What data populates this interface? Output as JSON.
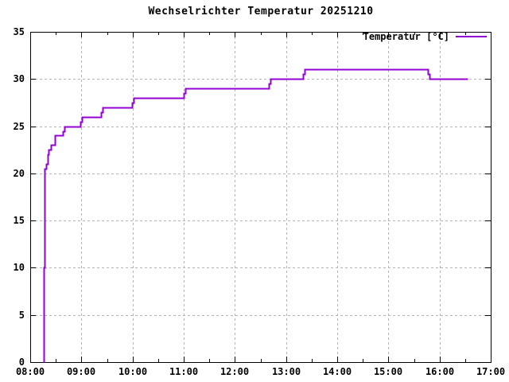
{
  "chart": {
    "title": "Wechselrichter Temperatur 20251210",
    "legend": {
      "label": "Temperatur [°C]"
    }
  },
  "colors": {
    "line": "#9400d3",
    "grid": "#b4b4b4",
    "border": "#000000",
    "background": "#ffffff",
    "text": "#000000"
  },
  "chart_data": {
    "type": "line",
    "style": "steps",
    "title": "Wechselrichter Temperatur 20251210",
    "xlabel": "",
    "ylabel": "",
    "x_unit": "hours (clock time HH:MM)",
    "y_unit": "°C",
    "xlim_hours": [
      8,
      17
    ],
    "ylim": [
      0,
      35
    ],
    "grid": true,
    "legend_position": "top-right-inside",
    "x_tick_hours": [
      8,
      9,
      10,
      11,
      12,
      13,
      14,
      15,
      16,
      17
    ],
    "x_tick_labels": [
      "08:00",
      "09:00",
      "10:00",
      "11:00",
      "12:00",
      "13:00",
      "14:00",
      "15:00",
      "16:00",
      "17:00"
    ],
    "x_minor_tick_hours": [
      8.5,
      9.5,
      10.5,
      11.5,
      12.5,
      13.5,
      14.5,
      15.5,
      16.5
    ],
    "y_ticks": [
      0,
      5,
      10,
      15,
      20,
      25,
      30,
      35
    ],
    "y_tick_labels": [
      "0",
      "5",
      "10",
      "15",
      "20",
      "25",
      "30",
      "35"
    ],
    "series": [
      {
        "name": "Temperatur [°C]",
        "color": "#9400d3",
        "points_format": "[time_in_hours, temperature_C] step vertices",
        "points": [
          [
            8.26,
            0
          ],
          [
            8.26,
            10
          ],
          [
            8.28,
            10
          ],
          [
            8.28,
            20.5
          ],
          [
            8.31,
            20.5
          ],
          [
            8.31,
            21
          ],
          [
            8.34,
            21
          ],
          [
            8.34,
            22
          ],
          [
            8.36,
            22
          ],
          [
            8.36,
            22.5
          ],
          [
            8.4,
            22.5
          ],
          [
            8.4,
            23
          ],
          [
            8.48,
            23
          ],
          [
            8.48,
            24
          ],
          [
            8.64,
            24
          ],
          [
            8.64,
            24.5
          ],
          [
            8.67,
            24.5
          ],
          [
            8.67,
            25
          ],
          [
            8.98,
            25
          ],
          [
            8.98,
            25.5
          ],
          [
            9.01,
            25.5
          ],
          [
            9.01,
            26
          ],
          [
            9.38,
            26
          ],
          [
            9.38,
            26.5
          ],
          [
            9.41,
            26.5
          ],
          [
            9.41,
            27
          ],
          [
            9.99,
            27
          ],
          [
            9.99,
            27.5
          ],
          [
            10.02,
            27.5
          ],
          [
            10.02,
            28
          ],
          [
            11.0,
            28
          ],
          [
            11.0,
            28.5
          ],
          [
            11.03,
            28.5
          ],
          [
            11.03,
            29
          ],
          [
            12.66,
            29
          ],
          [
            12.66,
            29.5
          ],
          [
            12.69,
            29.5
          ],
          [
            12.69,
            30
          ],
          [
            13.33,
            30
          ],
          [
            13.33,
            30.5
          ],
          [
            13.36,
            30.5
          ],
          [
            13.36,
            31
          ],
          [
            15.77,
            31
          ],
          [
            15.77,
            30.5
          ],
          [
            15.8,
            30.5
          ],
          [
            15.8,
            30
          ],
          [
            16.55,
            30
          ]
        ]
      }
    ]
  }
}
